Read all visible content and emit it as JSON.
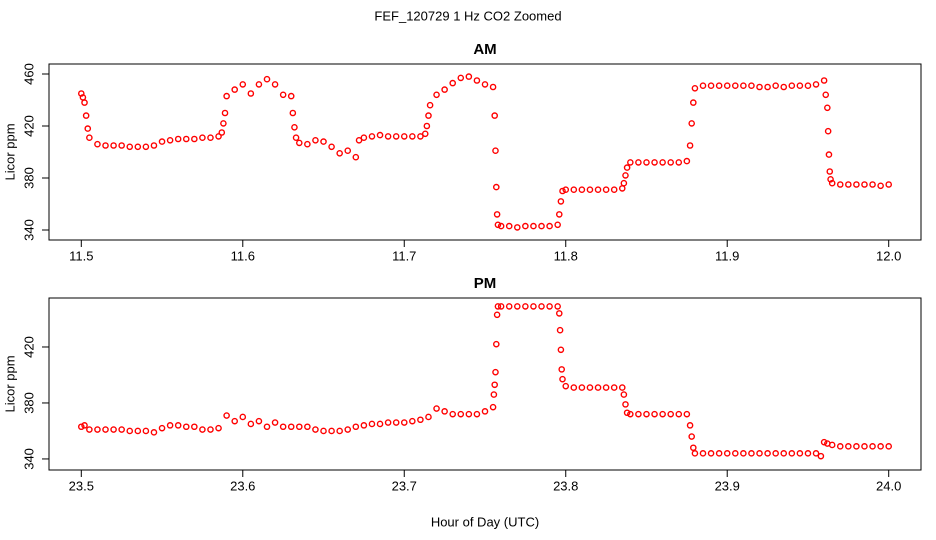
{
  "title": "FEF_120729  1 Hz CO2 Zoomed",
  "chart_data": [
    {
      "type": "scatter",
      "title": "AM",
      "y_label": "Licor ppm",
      "xlim": [
        11.48,
        12.02
      ],
      "ylim": [
        332.3,
        467.7
      ],
      "xticks": [
        11.5,
        11.6,
        11.7,
        11.8,
        11.9,
        {
          "value": 12,
          "label": "12.0"
        }
      ],
      "yticks": [
        340,
        380,
        420,
        460
      ],
      "series": [
        {
          "color": "#ff0000",
          "x": [
            11.5,
            11.501,
            11.502,
            11.503,
            11.504,
            11.505,
            11.51,
            11.515,
            11.52,
            11.525,
            11.53,
            11.535,
            11.54,
            11.545,
            11.55,
            11.555,
            11.56,
            11.565,
            11.57,
            11.575,
            11.58,
            11.585,
            11.587,
            11.588,
            11.589,
            11.59,
            11.595,
            11.6,
            11.605,
            11.61,
            11.615,
            11.62,
            11.625,
            11.63,
            11.631,
            11.632,
            11.633,
            11.635,
            11.64,
            11.645,
            11.65,
            11.655,
            11.66,
            11.665,
            11.67,
            11.672,
            11.675,
            11.68,
            11.685,
            11.69,
            11.695,
            11.7,
            11.705,
            11.71,
            11.713,
            11.714,
            11.715,
            11.716,
            11.72,
            11.725,
            11.73,
            11.735,
            11.74,
            11.745,
            11.75,
            11.755,
            11.756,
            11.7565,
            11.757,
            11.7575,
            11.758,
            11.76,
            11.765,
            11.77,
            11.775,
            11.78,
            11.785,
            11.79,
            11.795,
            11.796,
            11.797,
            11.798,
            11.8,
            11.805,
            11.81,
            11.815,
            11.82,
            11.825,
            11.83,
            11.835,
            11.836,
            11.837,
            11.838,
            11.84,
            11.845,
            11.85,
            11.855,
            11.86,
            11.865,
            11.87,
            11.875,
            11.877,
            11.878,
            11.879,
            11.88,
            11.885,
            11.89,
            11.895,
            11.9,
            11.905,
            11.91,
            11.915,
            11.92,
            11.925,
            11.93,
            11.935,
            11.94,
            11.945,
            11.95,
            11.955,
            11.96,
            11.961,
            11.962,
            11.9625,
            11.963,
            11.9635,
            11.964,
            11.965,
            11.97,
            11.975,
            11.98,
            11.985,
            11.99,
            11.995,
            12.0
          ],
          "values": [
            445,
            442,
            438,
            428,
            418,
            411,
            406,
            405,
            405,
            405,
            404,
            404,
            404,
            405,
            408,
            409,
            410,
            410,
            410,
            411,
            411,
            412,
            415,
            422,
            430,
            443,
            448,
            452,
            445,
            452,
            456,
            452,
            444,
            443,
            430,
            419,
            411,
            407,
            406,
            409,
            408,
            404,
            399,
            401,
            396,
            409,
            411,
            412,
            413,
            412,
            412,
            412,
            412,
            412,
            414,
            420,
            428,
            436,
            444,
            448,
            453,
            457,
            458,
            455,
            452,
            450,
            428,
            401,
            373,
            352,
            344,
            343,
            343,
            342,
            343,
            343,
            343,
            343,
            344,
            352,
            362,
            370,
            371,
            371,
            371,
            371,
            371,
            371,
            371,
            372,
            376,
            382,
            388,
            392,
            392,
            392,
            392,
            392,
            392,
            392,
            393,
            405,
            422,
            438,
            449,
            451,
            451,
            451,
            451,
            451,
            451,
            451,
            450,
            450,
            451,
            450,
            451,
            451,
            451,
            452,
            455,
            444,
            434,
            416,
            398,
            385,
            379,
            376,
            375,
            375,
            375,
            375,
            375,
            374,
            375
          ]
        }
      ]
    },
    {
      "type": "scatter",
      "title": "PM",
      "y_label": "Licor ppm",
      "x_label": "Hour of Day (UTC)",
      "xlim": [
        23.48,
        24.02
      ],
      "ylim": [
        332.1,
        455
      ],
      "xticks": [
        23.5,
        23.6,
        23.7,
        23.8,
        23.9,
        {
          "value": 24,
          "label": "24.0"
        }
      ],
      "yticks": [
        340,
        380,
        420
      ],
      "series": [
        {
          "color": "#ff0000",
          "x": [
            23.5,
            23.502,
            23.505,
            23.51,
            23.515,
            23.52,
            23.525,
            23.53,
            23.535,
            23.54,
            23.545,
            23.55,
            23.555,
            23.56,
            23.565,
            23.57,
            23.575,
            23.58,
            23.585,
            23.59,
            23.595,
            23.6,
            23.605,
            23.61,
            23.615,
            23.62,
            23.625,
            23.63,
            23.635,
            23.64,
            23.645,
            23.65,
            23.655,
            23.66,
            23.665,
            23.67,
            23.675,
            23.68,
            23.685,
            23.69,
            23.695,
            23.7,
            23.705,
            23.71,
            23.715,
            23.72,
            23.725,
            23.73,
            23.735,
            23.74,
            23.745,
            23.75,
            23.755,
            23.7555,
            23.756,
            23.7565,
            23.757,
            23.7575,
            23.758,
            23.76,
            23.765,
            23.77,
            23.775,
            23.78,
            23.785,
            23.79,
            23.795,
            23.796,
            23.7965,
            23.797,
            23.7975,
            23.798,
            23.8,
            23.805,
            23.81,
            23.815,
            23.82,
            23.825,
            23.83,
            23.835,
            23.836,
            23.837,
            23.838,
            23.84,
            23.845,
            23.85,
            23.855,
            23.86,
            23.865,
            23.87,
            23.875,
            23.877,
            23.878,
            23.879,
            23.88,
            23.885,
            23.89,
            23.895,
            23.9,
            23.905,
            23.91,
            23.915,
            23.92,
            23.925,
            23.93,
            23.935,
            23.94,
            23.945,
            23.95,
            23.955,
            23.958,
            23.96,
            23.962,
            23.965,
            23.97,
            23.975,
            23.98,
            23.985,
            23.99,
            23.995,
            24.0
          ],
          "values": [
            363,
            364,
            361,
            361,
            361,
            361,
            361,
            360,
            360,
            360,
            359,
            362,
            364,
            364,
            363,
            363,
            361,
            361,
            362,
            371,
            367,
            370,
            365,
            367,
            363,
            366,
            363,
            363,
            363,
            363,
            361,
            360,
            360,
            360,
            361,
            363,
            364,
            365,
            365,
            366,
            366,
            366,
            367,
            368,
            370,
            376,
            374,
            372,
            372,
            372,
            372,
            374,
            377,
            386,
            393,
            402,
            422,
            443,
            449,
            449,
            449,
            449,
            449,
            449,
            449,
            449,
            449,
            444,
            432,
            418,
            404,
            397,
            392,
            391,
            391,
            391,
            391,
            391,
            391,
            391,
            386,
            379,
            373,
            372,
            372,
            372,
            372,
            372,
            372,
            372,
            372,
            364,
            356,
            348,
            344,
            344,
            344,
            344,
            344,
            344,
            344,
            344,
            344,
            344,
            344,
            344,
            344,
            344,
            344,
            344,
            342,
            352,
            351,
            350,
            349,
            349,
            349,
            349,
            349,
            349,
            349
          ]
        }
      ]
    }
  ]
}
